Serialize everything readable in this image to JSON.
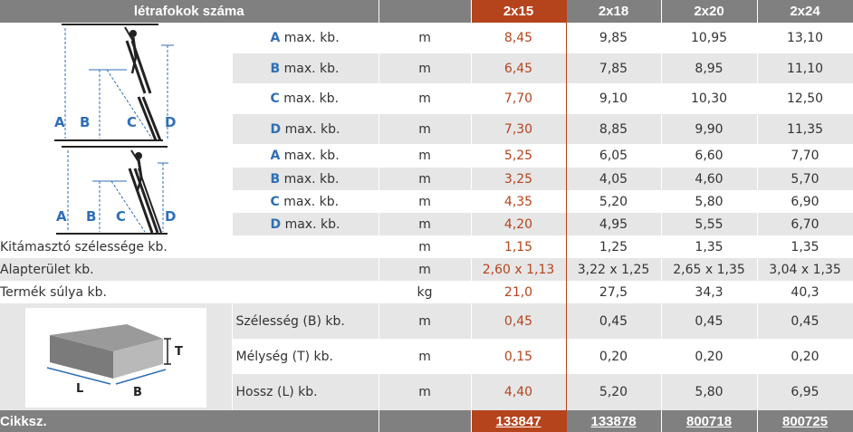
{
  "header": {
    "title": "létrafokok száma",
    "columns": [
      "2x15",
      "2x18",
      "2x20",
      "2x24"
    ]
  },
  "diagram_letters": {
    "a": "A",
    "b": "B",
    "c": "C",
    "d": "D",
    "t": "T",
    "l": "L",
    "bb": "B"
  },
  "rows": [
    {
      "letter": "A",
      "label": "max. kb.",
      "unit": "m",
      "values": [
        "8,45",
        "9,85",
        "10,95",
        "13,10"
      ]
    },
    {
      "letter": "B",
      "label": "max. kb.",
      "unit": "m",
      "values": [
        "6,45",
        "7,85",
        "8,95",
        "11,10"
      ]
    },
    {
      "letter": "C",
      "label": "max. kb.",
      "unit": "m",
      "values": [
        "7,70",
        "9,10",
        "10,30",
        "12,50"
      ]
    },
    {
      "letter": "D",
      "label": "max. kb.",
      "unit": "m",
      "values": [
        "7,30",
        "8,85",
        "9,90",
        "11,35"
      ]
    },
    {
      "letter": "A",
      "label": "max. kb.",
      "unit": "m",
      "values": [
        "5,25",
        "6,05",
        "6,60",
        "7,70"
      ]
    },
    {
      "letter": "B",
      "label": "max. kb.",
      "unit": "m",
      "values": [
        "3,25",
        "4,05",
        "4,60",
        "5,70"
      ]
    },
    {
      "letter": "C",
      "label": "max. kb.",
      "unit": "m",
      "values": [
        "4,35",
        "5,20",
        "5,80",
        "6,90"
      ]
    },
    {
      "letter": "D",
      "label": "max. kb.",
      "unit": "m",
      "values": [
        "4,20",
        "4,95",
        "5,55",
        "6,70"
      ]
    },
    {
      "label": "Kitámasztó szélessége kb.",
      "unit": "m",
      "values": [
        "1,15",
        "1,25",
        "1,35",
        "1,35"
      ]
    },
    {
      "label": "Alapterület kb.",
      "unit": "m",
      "values": [
        "2,60 x 1,13",
        "3,22 x 1,25",
        "2,65 x 1,35",
        "3,04 x 1,35"
      ]
    },
    {
      "label": "Termék súlya kb.",
      "unit": "kg",
      "values": [
        "21,0",
        "27,5",
        "34,3",
        "40,3"
      ]
    },
    {
      "label": "Szélesség (B) kb.",
      "unit": "m",
      "values": [
        "0,45",
        "0,45",
        "0,45",
        "0,45"
      ]
    },
    {
      "label": "Mélység (T) kb.",
      "unit": "m",
      "values": [
        "0,15",
        "0,20",
        "0,20",
        "0,20"
      ]
    },
    {
      "label": "Hossz (L) kb.",
      "unit": "m",
      "values": [
        "4,40",
        "5,20",
        "5,80",
        "6,95"
      ]
    }
  ],
  "footer": {
    "label": "Cikksz.",
    "codes": [
      "133847",
      "133878",
      "800718",
      "800725"
    ]
  },
  "colors": {
    "header": "#808080",
    "highlight": "#b5441c",
    "letter": "#2f6fb5",
    "shade": "#e6e6e6"
  }
}
